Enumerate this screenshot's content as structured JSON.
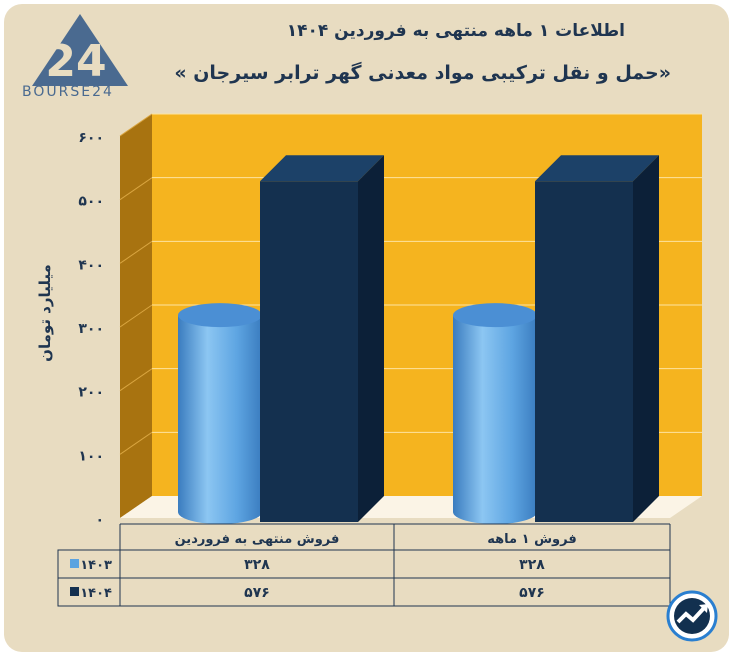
{
  "title_line1": "اطلاعات ۱ ماهه منتهی به فروردین ۱۴۰۴",
  "title_line2": "«حمل و نقل ترکیبی مواد معدنی گهر ترابر سیرجان »",
  "logo_text": "BOURSE24",
  "logo_mark": "24",
  "colors": {
    "s1403": "#5ba3e0",
    "s1404": "#14304f",
    "wall": "#f5b41f",
    "text": "#1f3550"
  },
  "chart_data": {
    "type": "bar",
    "categories": [
      "فروش منتهی به  فروردین",
      "فروش ۱  ماهه"
    ],
    "series": [
      {
        "name": "۱۴۰۳",
        "values": [
          328,
          328
        ],
        "labels": [
          "۳۲۸",
          "۳۲۸"
        ],
        "color": "#5ba3e0"
      },
      {
        "name": "۱۴۰۴",
        "values": [
          576,
          576
        ],
        "labels": [
          "۵۷۶",
          "۵۷۶"
        ],
        "color": "#14304f"
      }
    ],
    "ylabel": "میلیارد تومان",
    "yticks": [
      0,
      100,
      200,
      300,
      400,
      500,
      600
    ],
    "ytick_labels": [
      "۰",
      "۱۰۰",
      "۲۰۰",
      "۳۰۰",
      "۴۰۰",
      "۵۰۰",
      "۶۰۰"
    ],
    "ylim": [
      0,
      600
    ],
    "grid": true,
    "legend": "table-below"
  }
}
